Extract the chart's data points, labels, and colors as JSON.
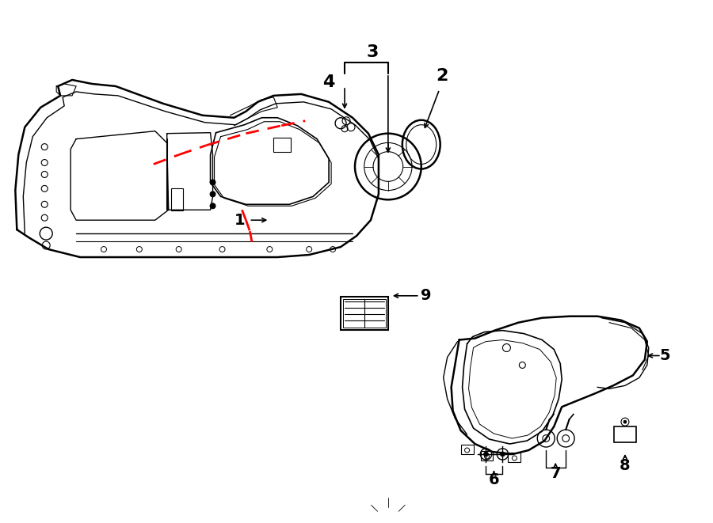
{
  "bg_color": "#ffffff",
  "line_color": "#000000",
  "red_color": "#ff0000",
  "fig_width": 9.0,
  "fig_height": 6.61,
  "dpi": 100
}
